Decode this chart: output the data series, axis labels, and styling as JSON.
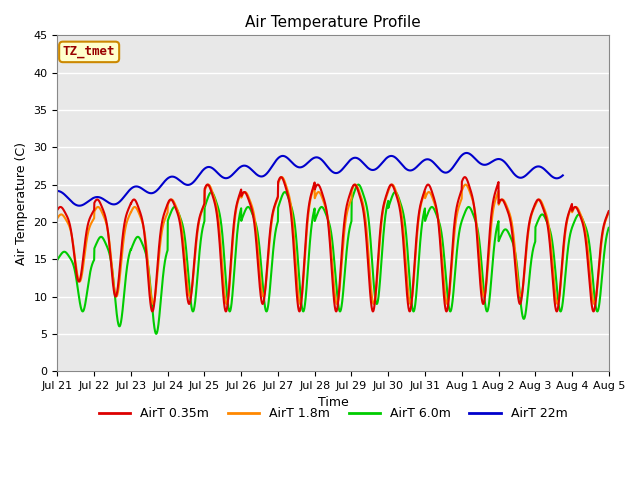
{
  "title": "Air Temperature Profile",
  "xlabel": "Time",
  "ylabel": "Air Temperature (C)",
  "ylim": [
    0,
    45
  ],
  "yticks": [
    0,
    5,
    10,
    15,
    20,
    25,
    30,
    35,
    40,
    45
  ],
  "xtick_labels": [
    "Jul 21",
    "Jul 22",
    "Jul 23",
    "Jul 24",
    "Jul 25",
    "Jul 26",
    "Jul 27",
    "Jul 28",
    "Jul 29",
    "Jul 30",
    "Jul 31",
    "Aug 1",
    "Aug 2",
    "Aug 3",
    "Aug 4",
    "Aug 5"
  ],
  "annotation_text": "TZ_tmet",
  "annotation_box_color": "#ffffcc",
  "annotation_border_color": "#cc8800",
  "annotation_text_color": "#990000",
  "series_labels": [
    "AirT 0.35m",
    "AirT 1.8m",
    "AirT 6.0m",
    "AirT 22m"
  ],
  "series_colors": [
    "#dd0000",
    "#ff8800",
    "#00cc00",
    "#0000cc"
  ],
  "series_linewidths": [
    1.5,
    1.5,
    1.5,
    1.5
  ],
  "axes_background": "#e8e8e8",
  "grid_color": "#ffffff",
  "fig_background": "#ffffff",
  "plot_area_bg": "#e0e0e0"
}
